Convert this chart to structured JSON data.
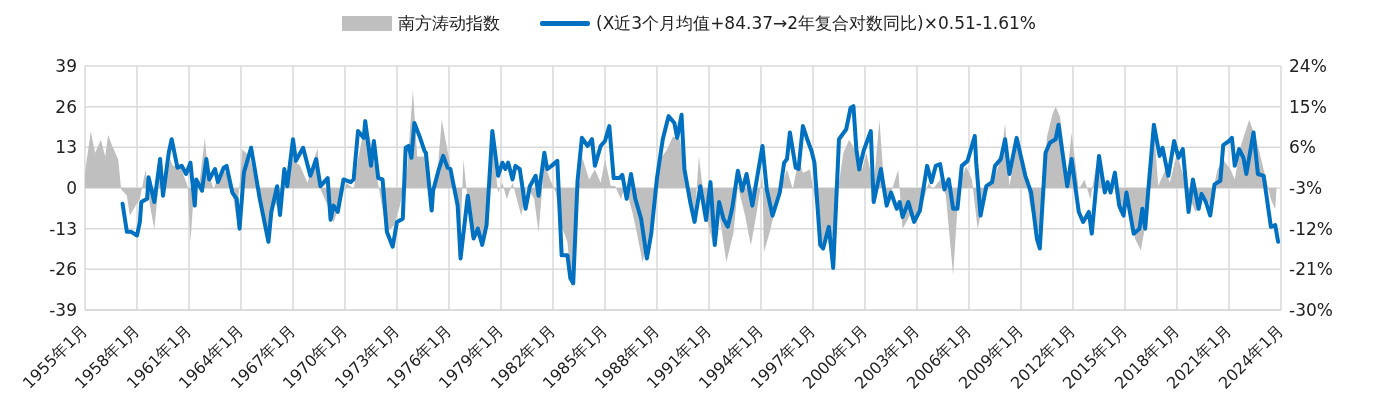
{
  "chart_data": {
    "type": "line",
    "legend": "top",
    "grid": true,
    "xlim": [
      "1955-01",
      "2024-01"
    ],
    "xticks": [
      {
        "value": "1955-01",
        "label": "1955年1月"
      },
      {
        "value": "1958-01",
        "label": "1958年1月"
      },
      {
        "value": "1961-01",
        "label": "1961年1月"
      },
      {
        "value": "1964-01",
        "label": "1964年1月"
      },
      {
        "value": "1967-01",
        "label": "1967年1月"
      },
      {
        "value": "1970-01",
        "label": "1970年1月"
      },
      {
        "value": "1973-01",
        "label": "1973年1月"
      },
      {
        "value": "1976-01",
        "label": "1976年1月"
      },
      {
        "value": "1979-01",
        "label": "1979年1月"
      },
      {
        "value": "1982-01",
        "label": "1982年1月"
      },
      {
        "value": "1985-01",
        "label": "1985年1月"
      },
      {
        "value": "1988-01",
        "label": "1988年1月"
      },
      {
        "value": "1991-01",
        "label": "1991年1月"
      },
      {
        "value": "1994-01",
        "label": "1994年1月"
      },
      {
        "value": "1997-01",
        "label": "1997年1月"
      },
      {
        "value": "2000-01",
        "label": "2000年1月"
      },
      {
        "value": "2003-01",
        "label": "2003年1月"
      },
      {
        "value": "2006-01",
        "label": "2006年1月"
      },
      {
        "value": "2009-01",
        "label": "2009年1月"
      },
      {
        "value": "2012-01",
        "label": "2012年1月"
      },
      {
        "value": "2015-01",
        "label": "2015年1月"
      },
      {
        "value": "2018-01",
        "label": "2018年1月"
      },
      {
        "value": "2021-01",
        "label": "2021年1月"
      },
      {
        "value": "2024-01",
        "label": "2024年1月"
      }
    ],
    "ylim": [
      -39,
      39
    ],
    "yticks": [
      -39,
      -26,
      -13,
      0,
      13,
      26,
      39
    ],
    "y2lim": [
      -30,
      24
    ],
    "y2ticks": [
      {
        "value": -30,
        "label": "-30%"
      },
      {
        "value": -21,
        "label": "-21%"
      },
      {
        "value": -12,
        "label": "-12%"
      },
      {
        "value": -3,
        "label": "-3%"
      },
      {
        "value": 6,
        "label": "6%"
      },
      {
        "value": 15,
        "label": "15%"
      },
      {
        "value": 24,
        "label": "24%"
      }
    ],
    "series": [
      {
        "name": "南方涛动指数",
        "type": "area",
        "color": "#bfbfbf",
        "x": [
          "1955-01",
          "1955-05",
          "1955-08",
          "1955-12",
          "1956-03",
          "1956-05",
          "1956-08",
          "1956-12",
          "1957-02",
          "1957-06",
          "1957-08",
          "1957-12",
          "1958-03",
          "1958-07",
          "1958-10",
          "1959-01",
          "1959-05",
          "1959-08",
          "1959-12",
          "1960-02",
          "1960-07",
          "1960-12",
          "1961-02",
          "1961-05",
          "1961-08",
          "1961-12",
          "1962-02",
          "1962-06",
          "1962-11",
          "1963-03",
          "1963-07",
          "1963-10",
          "1964-02",
          "1964-07",
          "1964-12",
          "1965-05",
          "1965-08",
          "1965-12",
          "1966-04",
          "1966-08",
          "1967-01",
          "1967-06",
          "1967-11",
          "1968-06",
          "1968-08",
          "1969-01",
          "1969-05",
          "1969-09",
          "1970-02",
          "1970-07",
          "1970-10",
          "1971-02",
          "1971-06",
          "1971-09",
          "1972-01",
          "1972-06",
          "1972-11",
          "1973-03",
          "1973-08",
          "1973-12",
          "1974-03",
          "1974-09",
          "1975-01",
          "1975-05",
          "1975-08",
          "1975-11",
          "1976-02",
          "1976-06",
          "1976-09",
          "1976-11",
          "1977-03",
          "1977-08",
          "1978-01",
          "1978-03",
          "1978-07",
          "1978-11",
          "1979-02",
          "1979-05",
          "1979-09",
          "1980-03",
          "1980-07",
          "1980-12",
          "1981-03",
          "1981-07",
          "1981-11",
          "1982-03",
          "1982-06",
          "1982-11",
          "1983-02",
          "1983-06",
          "1983-09",
          "1984-02",
          "1984-06",
          "1984-10",
          "1985-01",
          "1985-05",
          "1985-08",
          "1985-12",
          "1986-03",
          "1986-08",
          "1986-11",
          "1987-03",
          "1987-07",
          "1987-11",
          "1988-03",
          "1988-08",
          "1988-12",
          "1989-05",
          "1989-08",
          "1989-12",
          "1990-03",
          "1990-06",
          "1990-11",
          "1991-04",
          "1991-08",
          "1992-01",
          "1992-06",
          "1992-09",
          "1993-02",
          "1993-06",
          "1993-10",
          "1994-02",
          "1994-03",
          "1994-07",
          "1994-12",
          "1995-03",
          "1995-07",
          "1995-11",
          "1996-03",
          "1996-06",
          "1996-11",
          "1997-03",
          "1997-07",
          "1997-11",
          "1998-02",
          "1998-06",
          "1998-10",
          "1999-02",
          "1999-06",
          "1999-11",
          "2000-02",
          "2000-07",
          "2000-11",
          "2001-03",
          "2001-07",
          "2001-12",
          "2002-03",
          "2002-08",
          "2003-01",
          "2003-05",
          "2003-09",
          "2003-12",
          "2004-05",
          "2004-09",
          "2005-02",
          "2005-06",
          "2005-11",
          "2006-03",
          "2006-07",
          "2006-12",
          "2007-01",
          "2007-07",
          "2007-11",
          "2008-02",
          "2008-05",
          "2008-10",
          "2009-04",
          "2009-07",
          "2009-11",
          "2010-02",
          "2010-07",
          "2010-11",
          "2011-01",
          "2011-04",
          "2011-09",
          "2011-12",
          "2012-05",
          "2012-09",
          "2013-01",
          "2013-05",
          "2013-08",
          "2013-11",
          "2014-05",
          "2014-09",
          "2015-02",
          "2015-08",
          "2015-12",
          "2016-03",
          "2016-05",
          "2016-09",
          "2016-12",
          "2017-05",
          "2017-08",
          "2018-01",
          "2018-06",
          "2018-11",
          "2019-02",
          "2019-07",
          "2019-12",
          "2020-05",
          "2020-09",
          "2021-02",
          "2021-05",
          "2021-09",
          "2022-03",
          "2022-08",
          "2023-01",
          "2023-06",
          "2023-09",
          "2023-10"
        ],
        "values": [
          5,
          18.1,
          11.2,
          15.4,
          10.1,
          17,
          13.3,
          9.1,
          -0.4,
          -2.5,
          -8.9,
          -5.7,
          -3.6,
          5.9,
          -5.7,
          -13.1,
          5.9,
          -0.4,
          9.1,
          7,
          7,
          0.6,
          -17.3,
          2.7,
          0.6,
          16,
          5.9,
          -0.4,
          5.9,
          4.9,
          -1.5,
          -9.9,
          12.3,
          10.1,
          0.6,
          -12,
          -14.2,
          -4.7,
          -6.8,
          1.7,
          9.1,
          7,
          1.7,
          12.8,
          -0.4,
          -5.7,
          -11,
          -5.7,
          1.7,
          -0.4,
          9.1,
          18.6,
          16.5,
          9.1,
          -1.5,
          -14.2,
          -12,
          -5.7,
          5.9,
          31.3,
          10.1,
          10.1,
          -3.6,
          4.9,
          21.8,
          14.4,
          7,
          -1.5,
          -14.2,
          9.1,
          -8.9,
          -15.2,
          -18.4,
          -11,
          14.4,
          -1.5,
          1.7,
          -3.6,
          1.7,
          -8.9,
          0.6,
          -3.6,
          -14.2,
          8,
          2.7,
          -1.5,
          -11,
          -17.3,
          -32.1,
          -3.6,
          10.1,
          2.7,
          5.9,
          1.7,
          9.1,
          0.6,
          0.6,
          -3.6,
          0.6,
          -7.8,
          -14.2,
          -23.7,
          -16.3,
          -3.6,
          9.1,
          12.3,
          16.5,
          15.4,
          5.9,
          -5.7,
          -9.9,
          10.1,
          -8.9,
          -18.4,
          -7.8,
          -23.7,
          -14.2,
          0.6,
          -8.9,
          -18.4,
          -7.8,
          3.8,
          -20.5,
          -14.2,
          -4.7,
          0.6,
          5.9,
          -0.4,
          9.1,
          4.9,
          5.9,
          -5.7,
          -19.4,
          -14.2,
          -25.8,
          -1.5,
          11.2,
          15.4,
          12.3,
          5.9,
          11.2,
          0.6,
          21.8,
          -3.6,
          -1.5,
          5.9,
          -13.1,
          -8.9,
          -9.9,
          -4.7,
          1.7,
          -0.4,
          2.7,
          -2.5,
          -27.9,
          0.6,
          7,
          2.7,
          -13.1,
          -1.5,
          -1.5,
          3.8,
          9.1,
          20.7,
          0.6,
          13.3,
          4.9,
          -4.7,
          -13.1,
          -14.2,
          16.5,
          23.9,
          26,
          22.8,
          3.8,
          17.6,
          -0.4,
          2.7,
          -3.6,
          7,
          9.1,
          -0.4,
          1.7,
          -7.8,
          -4.7,
          -16.3,
          -20,
          -12,
          0.6,
          19.7,
          0.6,
          5.9,
          1.7,
          11.2,
          2.7,
          -4.7,
          -7.8,
          -1.5,
          -5.7,
          5.9,
          9.1,
          5.9,
          2.7,
          13.3,
          21.8,
          15.4,
          5.9,
          -3.6,
          -6.8,
          0.6
        ]
      },
      {
        "name": "(X近3个月均值+84.37→2年复合对数同比)×0.51-1.61%",
        "axis": "y2",
        "color": "#0070c0",
        "x": [
          "1957-03",
          "1957-06",
          "1957-09",
          "1958-01",
          "1958-03",
          "1958-04",
          "1958-08",
          "1958-09",
          "1959-01",
          "1959-05",
          "1959-07",
          "1959-11",
          "1960-01",
          "1960-05",
          "1960-08",
          "1960-11",
          "1961-02",
          "1961-05",
          "1961-06",
          "1961-10",
          "1962-01",
          "1962-03",
          "1962-07",
          "1962-09",
          "1963-01",
          "1963-03",
          "1963-07",
          "1963-10",
          "1963-12",
          "1964-03",
          "1964-08",
          "1965-02",
          "1965-08",
          "1965-10",
          "1966-02",
          "1966-04",
          "1966-07",
          "1966-09",
          "1967-01",
          "1967-03",
          "1967-08",
          "1968-01",
          "1968-05",
          "1968-08",
          "1969-01",
          "1969-03",
          "1969-05",
          "1969-08",
          "1969-12",
          "1970-05",
          "1970-07",
          "1970-10",
          "1971-02",
          "1971-03",
          "1971-07",
          "1971-09",
          "1971-12",
          "1972-03",
          "1972-06",
          "1972-10",
          "1973-01",
          "1973-05",
          "1973-07",
          "1973-09",
          "1973-11",
          "1974-01",
          "1974-05",
          "1974-08",
          "1974-09",
          "1975-01",
          "1975-02",
          "1975-06",
          "1975-09",
          "1975-12",
          "1976-02",
          "1976-07",
          "1976-09",
          "1977-02",
          "1977-06",
          "1977-09",
          "1977-12",
          "1978-03",
          "1978-07",
          "1978-11",
          "1979-02",
          "1979-04",
          "1979-06",
          "1979-09",
          "1979-11",
          "1980-02",
          "1980-06",
          "1980-09",
          "1981-01",
          "1981-03",
          "1981-07",
          "1981-09",
          "1981-12",
          "1982-04",
          "1982-07",
          "1982-11",
          "1983-01",
          "1983-03",
          "1983-06",
          "1983-09",
          "1984-01",
          "1984-04",
          "1984-06",
          "1984-10",
          "1985-01",
          "1985-04",
          "1985-07",
          "1985-11",
          "1986-01",
          "1986-04",
          "1986-07",
          "1986-10",
          "1987-02",
          "1987-06",
          "1987-09",
          "1988-01",
          "1988-05",
          "1988-09",
          "1989-01",
          "1989-03",
          "1989-06",
          "1989-08",
          "1989-12",
          "1990-03",
          "1990-07",
          "1990-11",
          "1991-02",
          "1991-05",
          "1991-08",
          "1991-11",
          "1992-02",
          "1992-05",
          "1992-09",
          "1992-12",
          "1993-03",
          "1993-07",
          "1994-02",
          "1994-05",
          "1994-09",
          "1995-02",
          "1995-05",
          "1995-07",
          "1995-09",
          "1996-01",
          "1996-03",
          "1996-06",
          "1996-09",
          "1996-12",
          "1997-02",
          "1997-06",
          "1997-08",
          "1997-12",
          "1998-03",
          "1998-07",
          "1998-12",
          "1999-03",
          "1999-05",
          "1999-07",
          "1999-09",
          "1999-12",
          "2000-05",
          "2000-07",
          "2000-12",
          "2001-04",
          "2001-07",
          "2001-11",
          "2002-01",
          "2002-03",
          "2002-07",
          "2002-11",
          "2003-03",
          "2003-08",
          "2003-11",
          "2004-02",
          "2004-05",
          "2004-08",
          "2004-11",
          "2005-02",
          "2005-05",
          "2005-08",
          "2005-12",
          "2006-05",
          "2006-06",
          "2006-09",
          "2007-01",
          "2007-05",
          "2007-07",
          "2007-11",
          "2008-02",
          "2008-05",
          "2008-10",
          "2009-04",
          "2009-08",
          "2009-12",
          "2010-02",
          "2010-06",
          "2010-09",
          "2011-01",
          "2011-03",
          "2011-09",
          "2011-12",
          "2012-05",
          "2012-08",
          "2012-12",
          "2013-02",
          "2013-07",
          "2013-11",
          "2014-01",
          "2014-03",
          "2014-06",
          "2014-09",
          "2014-12",
          "2015-02",
          "2015-07",
          "2015-11",
          "2016-01",
          "2016-03",
          "2016-05",
          "2016-09",
          "2017-01",
          "2017-03",
          "2017-07",
          "2017-11",
          "2018-02",
          "2018-05",
          "2018-09",
          "2018-12",
          "2019-04",
          "2019-06",
          "2019-09",
          "2019-12",
          "2020-03",
          "2020-07",
          "2020-09",
          "2021-01",
          "2021-03",
          "2021-05",
          "2021-08",
          "2021-11",
          "2022-01",
          "2022-06",
          "2022-09",
          "2023-01",
          "2023-06",
          "2023-09",
          "2023-11"
        ],
        "values": [
          -6.5,
          -12.7,
          -12.7,
          -13.5,
          -10.5,
          -6.1,
          -5.4,
          -0.6,
          -6.1,
          3.4,
          -4.7,
          4.8,
          7.8,
          1.5,
          1.9,
          0.1,
          2.6,
          -6.9,
          -1.1,
          -3.6,
          3.4,
          -1.1,
          1.2,
          -1.7,
          1.5,
          1.9,
          -4,
          -5.4,
          -12,
          0.4,
          5.9,
          -5.4,
          -14.9,
          -8.3,
          -2.6,
          -9,
          1.2,
          -2.6,
          7.8,
          3,
          5.9,
          -0.3,
          3.4,
          -2.6,
          -0.8,
          -10,
          -6.9,
          -8.3,
          -1.1,
          -1.7,
          -1.1,
          9.6,
          8.1,
          11.8,
          1.9,
          7.4,
          -0.8,
          -1.1,
          -12.7,
          -16,
          -10.5,
          -9.8,
          5.9,
          6.3,
          3.7,
          11.4,
          8.1,
          5.2,
          4.8,
          -8,
          -3.6,
          1.2,
          4.1,
          1.5,
          1.2,
          -6.9,
          -18.6,
          -4.7,
          -14.2,
          -12,
          -15.6,
          -11.2,
          9.6,
          -0.3,
          2.6,
          1.2,
          2.6,
          -1.1,
          1.9,
          1.2,
          -7.6,
          -2.6,
          -0.3,
          -4.7,
          4.8,
          1.2,
          1.9,
          3,
          -17.9,
          -17.9,
          -23,
          -24.1,
          -1.4,
          8.1,
          6.3,
          7.8,
          1.9,
          6.3,
          7.4,
          10.7,
          -0.8,
          -0.8,
          -0.1,
          -5.4,
          0.1,
          -5.4,
          -9.8,
          -18.6,
          -13.1,
          -0.8,
          7.8,
          12.9,
          11.4,
          8.1,
          13.2,
          1.1,
          -6.1,
          -10.5,
          -2.6,
          -10.1,
          -1.7,
          -15.6,
          -6.1,
          -9.8,
          -11.6,
          -7.6,
          0.8,
          -3.6,
          0.1,
          -6.9,
          6.3,
          -3.3,
          -9.1,
          -4,
          2.6,
          3.4,
          9.3,
          1.5,
          1.2,
          10.7,
          7.8,
          5.2,
          2.6,
          -15.6,
          -16.4,
          -11.6,
          -20.7,
          7.8,
          10,
          14.7,
          15.1,
          5.6,
          1.1,
          5.2,
          9.6,
          -6.1,
          1.2,
          -6.9,
          -4,
          -7.6,
          -6.1,
          -9.4,
          -6.1,
          -10.5,
          -8,
          1.9,
          -1.7,
          1.9,
          2.3,
          -3.3,
          -1.1,
          -7.6,
          -7.6,
          1.9,
          3,
          8.5,
          2.6,
          -9.1,
          -2.6,
          -1.7,
          1.9,
          3.4,
          7.8,
          0.1,
          8.1,
          -0.3,
          -4,
          -14.2,
          -16.4,
          4.8,
          7,
          7.8,
          11,
          -2.6,
          3.4,
          -8.3,
          -10.5,
          -8.3,
          -13.1,
          4.1,
          -4,
          -1.7,
          -4,
          0.4,
          -6.9,
          -9.1,
          -4,
          -13.1,
          -12,
          -7.6,
          -12,
          -4,
          11,
          4.1,
          5.9,
          -0.3,
          7.4,
          3.7,
          5.6,
          -8.3,
          -1.1,
          -7.6,
          -4.3,
          -6.1,
          -9.1,
          -2.2,
          -1.4,
          6.5,
          7.4,
          8.1,
          1.9,
          5.6,
          3.7,
          0.1,
          9.3,
          0.1,
          -0.3,
          -11.6,
          -11.2,
          -14.9
        ]
      }
    ]
  }
}
